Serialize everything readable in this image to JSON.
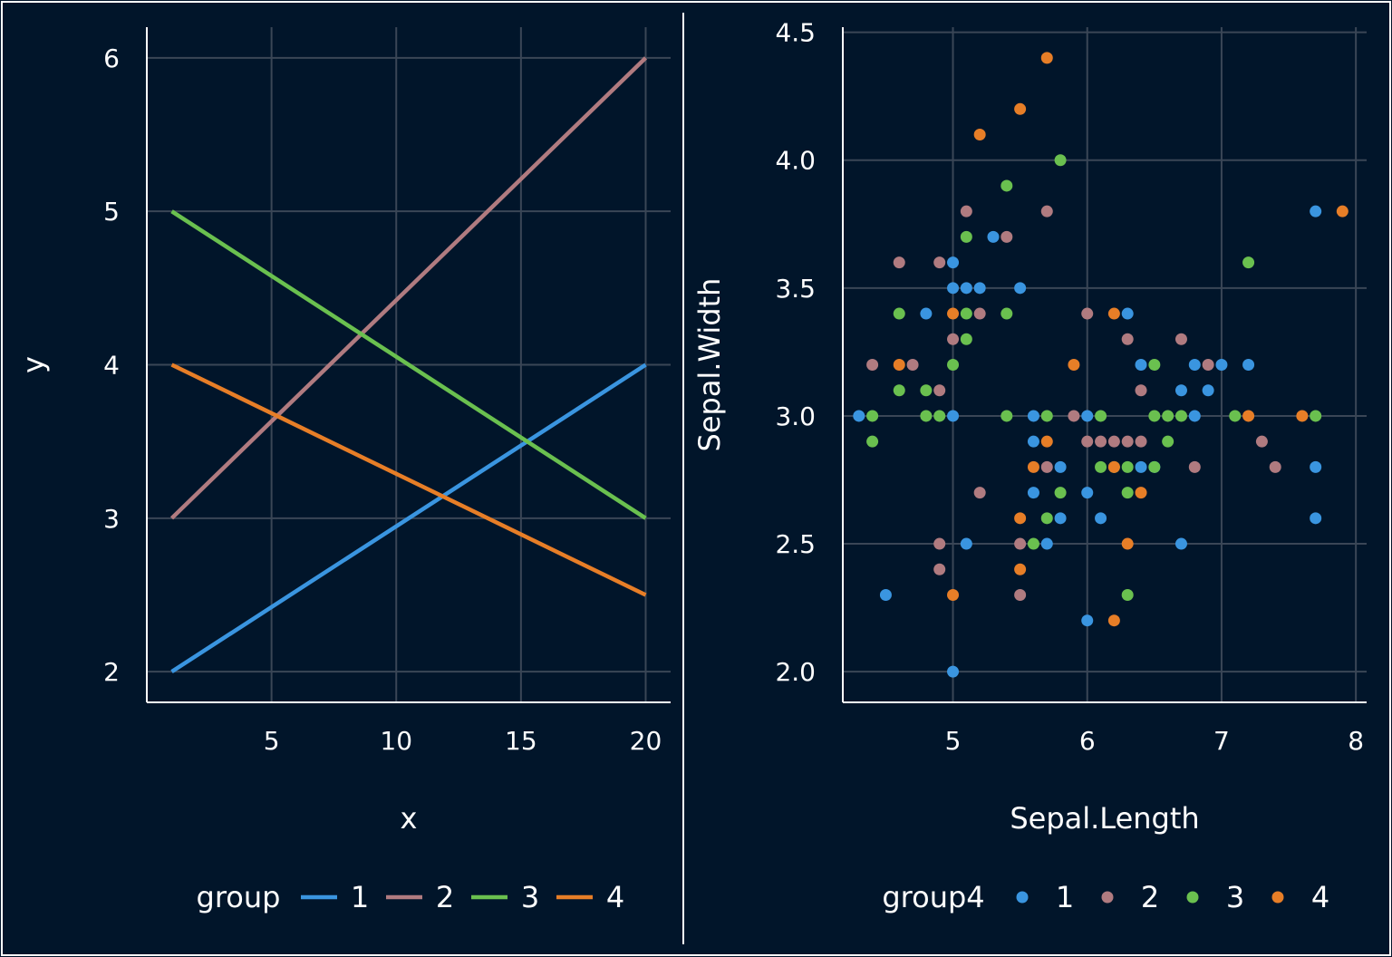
{
  "colors": {
    "background": "#01152a",
    "grid": "#3a4656",
    "axis": "#ffffff",
    "text": "#ffffff",
    "group_1": "#3a95e0",
    "group_2": "#b07b80",
    "group_3": "#6ac04f",
    "group_4": "#e77e27"
  },
  "chart_data": [
    {
      "type": "line",
      "title": "",
      "xlabel": "x",
      "ylabel": "y",
      "xlim": [
        0,
        21
      ],
      "ylim": [
        1.8,
        6.2
      ],
      "x_ticks": [
        5,
        10,
        15,
        20
      ],
      "y_ticks": [
        2,
        3,
        4,
        5,
        6
      ],
      "grid": true,
      "legend": {
        "title": "group",
        "position": "bottom",
        "entries": [
          "1",
          "2",
          "3",
          "4"
        ]
      },
      "series": [
        {
          "name": "1",
          "color": "#3a95e0",
          "x": [
            1,
            20
          ],
          "y": [
            2,
            4
          ]
        },
        {
          "name": "2",
          "color": "#b07b80",
          "x": [
            1,
            20
          ],
          "y": [
            3,
            6
          ]
        },
        {
          "name": "3",
          "color": "#6ac04f",
          "x": [
            1,
            20
          ],
          "y": [
            5,
            3
          ]
        },
        {
          "name": "4",
          "color": "#e77e27",
          "x": [
            1,
            20
          ],
          "y": [
            4,
            2.5
          ]
        }
      ]
    },
    {
      "type": "scatter",
      "title": "",
      "xlabel": "Sepal.Length",
      "ylabel": "Sepal.Width",
      "xlim": [
        4.18,
        8.08
      ],
      "ylim": [
        1.88,
        4.52
      ],
      "x_ticks": [
        5,
        6,
        7,
        8
      ],
      "y_ticks": [
        "2.0",
        "2.5",
        "3.0",
        "3.5",
        "4.0",
        "4.5"
      ],
      "grid": true,
      "legend": {
        "title": "group4",
        "position": "bottom",
        "entries": [
          "1",
          "2",
          "3",
          "4"
        ]
      },
      "series": [
        {
          "name": "1",
          "color": "#3a95e0",
          "points": [
            [
              4.3,
              3.0
            ],
            [
              4.5,
              2.3
            ],
            [
              4.8,
              3.4
            ],
            [
              5.0,
              3.6
            ],
            [
              5.0,
              3.5
            ],
            [
              5.0,
              3.0
            ],
            [
              5.0,
              2.0
            ],
            [
              5.1,
              3.5
            ],
            [
              5.1,
              2.5
            ],
            [
              5.2,
              3.5
            ],
            [
              5.3,
              3.7
            ],
            [
              5.5,
              3.5
            ],
            [
              5.6,
              3.0
            ],
            [
              5.6,
              2.9
            ],
            [
              5.6,
              2.7
            ],
            [
              5.7,
              2.5
            ],
            [
              5.8,
              2.8
            ],
            [
              5.8,
              2.6
            ],
            [
              6.0,
              3.0
            ],
            [
              6.0,
              2.7
            ],
            [
              6.0,
              2.2
            ],
            [
              6.1,
              2.6
            ],
            [
              6.3,
              3.4
            ],
            [
              6.4,
              3.2
            ],
            [
              6.4,
              2.8
            ],
            [
              6.5,
              2.8
            ],
            [
              6.7,
              3.1
            ],
            [
              6.7,
              2.5
            ],
            [
              6.8,
              3.2
            ],
            [
              6.8,
              3.0
            ],
            [
              6.9,
              3.1
            ],
            [
              7.0,
              3.2
            ],
            [
              7.2,
              3.2
            ],
            [
              7.7,
              3.8
            ],
            [
              7.7,
              2.8
            ],
            [
              7.7,
              2.6
            ]
          ]
        },
        {
          "name": "2",
          "color": "#b07b80",
          "points": [
            [
              4.4,
              3.2
            ],
            [
              4.6,
              3.6
            ],
            [
              4.7,
              3.2
            ],
            [
              4.9,
              3.6
            ],
            [
              4.9,
              3.1
            ],
            [
              4.9,
              2.5
            ],
            [
              4.9,
              2.4
            ],
            [
              5.0,
              3.3
            ],
            [
              5.1,
              3.8
            ],
            [
              5.2,
              3.4
            ],
            [
              5.2,
              2.7
            ],
            [
              5.4,
              3.7
            ],
            [
              5.5,
              2.5
            ],
            [
              5.5,
              2.3
            ],
            [
              5.7,
              3.8
            ],
            [
              5.7,
              2.8
            ],
            [
              5.9,
              3.0
            ],
            [
              6.0,
              3.4
            ],
            [
              6.0,
              2.9
            ],
            [
              6.1,
              2.9
            ],
            [
              6.2,
              2.9
            ],
            [
              6.3,
              3.3
            ],
            [
              6.3,
              2.9
            ],
            [
              6.4,
              3.1
            ],
            [
              6.4,
              2.9
            ],
            [
              6.7,
              3.3
            ],
            [
              6.8,
              2.8
            ],
            [
              6.9,
              3.2
            ],
            [
              7.3,
              2.9
            ],
            [
              7.4,
              2.8
            ]
          ]
        },
        {
          "name": "3",
          "color": "#6ac04f",
          "points": [
            [
              4.4,
              3.0
            ],
            [
              4.4,
              2.9
            ],
            [
              4.6,
              3.4
            ],
            [
              4.6,
              3.1
            ],
            [
              4.8,
              3.1
            ],
            [
              4.8,
              3.0
            ],
            [
              4.9,
              3.0
            ],
            [
              5.0,
              3.2
            ],
            [
              5.1,
              3.7
            ],
            [
              5.1,
              3.4
            ],
            [
              5.1,
              3.3
            ],
            [
              5.4,
              3.9
            ],
            [
              5.4,
              3.4
            ],
            [
              5.4,
              3.0
            ],
            [
              5.6,
              2.5
            ],
            [
              5.7,
              3.0
            ],
            [
              5.7,
              2.6
            ],
            [
              5.8,
              4.0
            ],
            [
              5.8,
              2.7
            ],
            [
              6.1,
              3.0
            ],
            [
              6.1,
              2.8
            ],
            [
              6.2,
              2.8
            ],
            [
              6.3,
              2.8
            ],
            [
              6.3,
              2.7
            ],
            [
              6.3,
              2.3
            ],
            [
              6.5,
              3.2
            ],
            [
              6.5,
              3.0
            ],
            [
              6.5,
              2.8
            ],
            [
              6.6,
              3.0
            ],
            [
              6.6,
              2.9
            ],
            [
              6.7,
              3.0
            ],
            [
              7.1,
              3.0
            ],
            [
              7.2,
              3.6
            ],
            [
              7.7,
              3.0
            ]
          ]
        },
        {
          "name": "4",
          "color": "#e77e27",
          "points": [
            [
              4.6,
              3.2
            ],
            [
              5.0,
              3.4
            ],
            [
              5.0,
              2.3
            ],
            [
              5.2,
              4.1
            ],
            [
              5.5,
              4.2
            ],
            [
              5.5,
              2.6
            ],
            [
              5.5,
              2.4
            ],
            [
              5.6,
              2.8
            ],
            [
              5.7,
              4.4
            ],
            [
              5.7,
              2.9
            ],
            [
              5.9,
              3.2
            ],
            [
              6.2,
              3.4
            ],
            [
              6.2,
              2.8
            ],
            [
              6.2,
              2.2
            ],
            [
              6.3,
              2.5
            ],
            [
              6.4,
              2.7
            ],
            [
              7.2,
              3.0
            ],
            [
              7.6,
              3.0
            ],
            [
              7.9,
              3.8
            ]
          ]
        }
      ]
    }
  ]
}
